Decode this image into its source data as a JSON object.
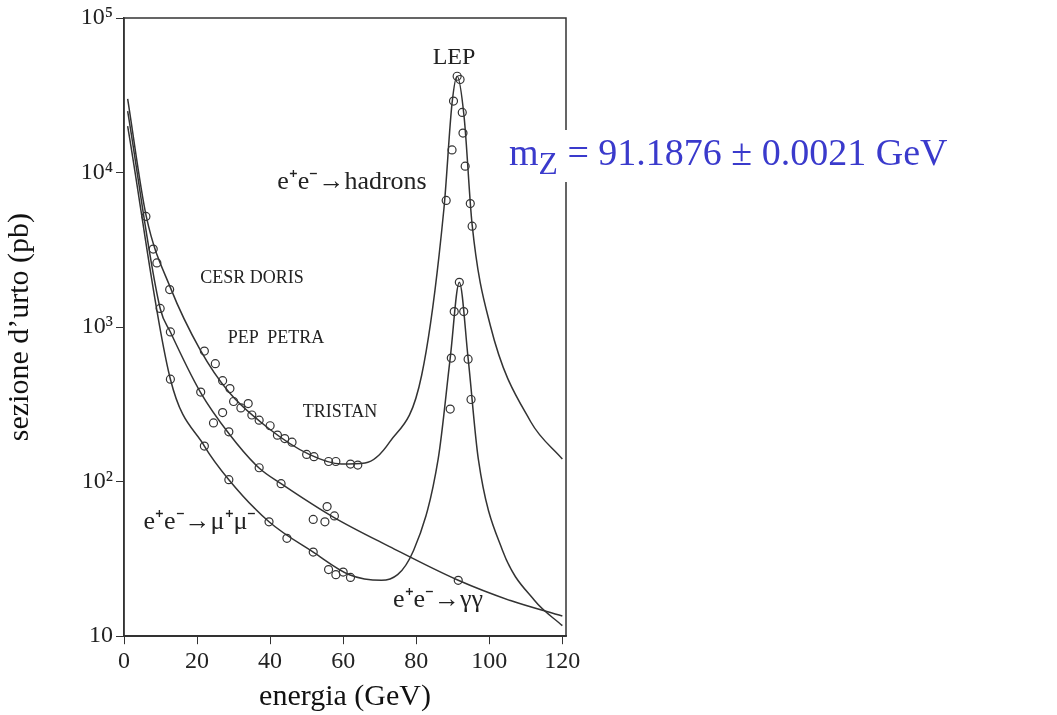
{
  "chart_data": {
    "type": "line",
    "xlabel": "energia (GeV)",
    "ylabel": "sezione d’urto (pb)",
    "log": "y",
    "grid": false,
    "legend": false,
    "xlim": [
      0,
      121
    ],
    "xticks": [
      0,
      20,
      40,
      60,
      80,
      100,
      120
    ],
    "ylim": [
      10,
      100000
    ],
    "yticks": [
      {
        "value": 10,
        "label": "10"
      },
      {
        "value": 100,
        "label": "10²"
      },
      {
        "value": 1000,
        "label": "10³"
      },
      {
        "value": 10000,
        "label": "10⁴"
      },
      {
        "value": 100000,
        "label": "10⁵"
      }
    ],
    "series": [
      {
        "type": "line",
        "marker": "none",
        "color": "#333333",
        "x": [
          1,
          6.1,
          12.7,
          20.9,
          28.7,
          39.7,
          50.7,
          59.5,
          66,
          72.7,
          81.5,
          87.6,
          89.8,
          91.2,
          93.1,
          95.3,
          100.3,
          111.3,
          120
        ],
        "values": [
          30000,
          5200,
          1800,
          710,
          380,
          220,
          150,
          130,
          132,
          180,
          490,
          5900,
          28000,
          42000,
          23000,
          4600,
          1020,
          245,
          140
        ]
      },
      {
        "type": "line",
        "marker": "none",
        "color": "#333333",
        "x": [
          1,
          9.9,
          12.7,
          20.9,
          28.7,
          36.9,
          43,
          57.3,
          72.7,
          91.5,
          105.8,
          120
        ],
        "values": [
          25000,
          1320,
          930,
          380,
          205,
          123,
          97,
          59,
          38,
          23,
          17,
          13.5
        ]
      },
      {
        "type": "line",
        "marker": "none",
        "color": "#333333",
        "x": [
          1,
          12.7,
          22,
          28.7,
          39.7,
          51.8,
          61.7,
          70.5,
          79.3,
          86,
          89.3,
          91.8,
          94.2,
          97,
          103.6,
          112.4,
          120
        ],
        "values": [
          20000,
          460,
          170,
          103,
          55,
          35,
          25,
          23,
          36,
          140,
          630,
          1950,
          630,
          140,
          36,
          17,
          11.7
        ]
      },
      {
        "type": "scatter",
        "marker": "circle",
        "color": "#333333",
        "x": [
          6,
          8,
          9,
          12.5,
          22,
          25,
          27,
          29,
          30,
          32,
          34,
          35,
          37,
          40,
          42,
          44,
          46,
          50,
          52,
          56,
          58,
          62,
          64
        ],
        "values": [
          5200,
          3200,
          2600,
          1750,
          700,
          580,
          450,
          400,
          330,
          300,
          320,
          270,
          250,
          230,
          200,
          190,
          180,
          150,
          145,
          135,
          135,
          130,
          128
        ]
      },
      {
        "type": "scatter",
        "marker": "circle",
        "color": "#333333",
        "x": [
          88.2,
          89.8,
          90.2,
          91.2,
          92,
          92.6,
          92.8,
          93.4,
          94.8,
          95.3
        ],
        "values": [
          6600,
          14000,
          29000,
          42000,
          40000,
          24500,
          18000,
          11000,
          6300,
          4500
        ]
      },
      {
        "type": "scatter",
        "marker": "circle",
        "color": "#333333",
        "x": [
          89.3,
          89.6,
          90.4,
          91.8,
          93,
          94.2,
          95
        ],
        "values": [
          295,
          630,
          1260,
          1950,
          1260,
          620,
          340
        ]
      },
      {
        "type": "scatter",
        "marker": "circle",
        "color": "#333333",
        "x": [
          12.7,
          22,
          28.7,
          39.7,
          44.6,
          51.8,
          56,
          58,
          60,
          62
        ],
        "values": [
          460,
          170,
          103,
          55,
          43,
          35,
          27,
          25,
          26,
          24
        ]
      },
      {
        "type": "scatter",
        "marker": "circle",
        "color": "#333333",
        "x": [
          9.9,
          12.7,
          21,
          24.5,
          27,
          28.7,
          37,
          43,
          51.8,
          55,
          55.6,
          57.6,
          91.5
        ],
        "values": [
          1320,
          930,
          380,
          240,
          280,
          210,
          123,
          97,
          57,
          55,
          69,
          60,
          23
        ]
      }
    ],
    "annotations": [
      "LEP",
      "CESR DORIS",
      "PEP  PETRA",
      "TRISTAN",
      "e⁺e⁻→hadrons",
      "e⁺e⁻→μ⁺μ⁻",
      "e⁺e⁻→γγ",
      "m$_{Z}$ = 91.1876 ± 0.0021 GeV"
    ]
  }
}
